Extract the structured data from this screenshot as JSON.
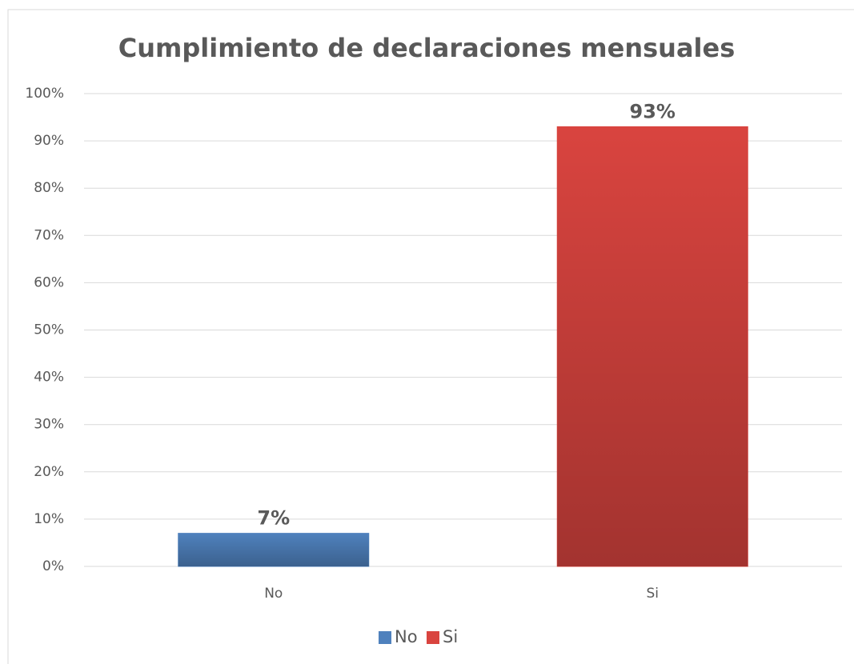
{
  "chart_data": {
    "type": "bar",
    "title": "Cumplimiento de declaraciones mensuales",
    "categories": [
      "No",
      "Si"
    ],
    "values": [
      7,
      93
    ],
    "value_labels": [
      "7%",
      "93%"
    ],
    "colors": [
      "#4f81bd",
      "#d9443f"
    ],
    "ylim": [
      0,
      100
    ],
    "yticks": [
      {
        "value": 0,
        "label": "0%"
      },
      {
        "value": 10,
        "label": "10%"
      },
      {
        "value": 20,
        "label": "20%"
      },
      {
        "value": 30,
        "label": "30%"
      },
      {
        "value": 40,
        "label": "40%"
      },
      {
        "value": 50,
        "label": "50%"
      },
      {
        "value": 60,
        "label": "60%"
      },
      {
        "value": 70,
        "label": "70%"
      },
      {
        "value": 80,
        "label": "80%"
      },
      {
        "value": 90,
        "label": "90%"
      },
      {
        "value": 100,
        "label": "100%"
      }
    ],
    "grid": true,
    "legend": "bottom"
  }
}
